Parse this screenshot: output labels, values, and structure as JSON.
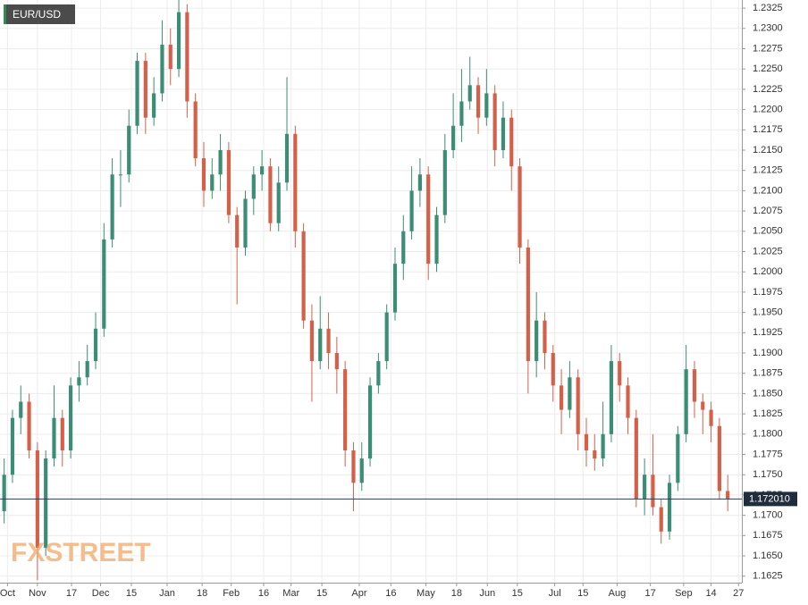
{
  "chart_data": {
    "type": "candlestick",
    "title": "EUR/USD",
    "watermark": "FXSTREET",
    "up_color": "#3b8d75",
    "down_color": "#d5604a",
    "grid": true,
    "xlim": [
      -0.5,
      88.7
    ],
    "xticks": [
      {
        "value": 0.4,
        "label": "Oct"
      },
      {
        "value": 4.0,
        "label": "Nov"
      },
      {
        "value": 8.1,
        "label": "17"
      },
      {
        "value": 11.6,
        "label": "Dec"
      },
      {
        "value": 15.3,
        "label": "15"
      },
      {
        "value": 19.6,
        "label": "Jan"
      },
      {
        "value": 23.8,
        "label": "18"
      },
      {
        "value": 27.3,
        "label": "Feb"
      },
      {
        "value": 31.2,
        "label": "16"
      },
      {
        "value": 34.5,
        "label": "Mar"
      },
      {
        "value": 38.2,
        "label": "15"
      },
      {
        "value": 42.7,
        "label": "Apr"
      },
      {
        "value": 46.5,
        "label": "16"
      },
      {
        "value": 50.7,
        "label": "May"
      },
      {
        "value": 54.4,
        "label": "18"
      },
      {
        "value": 58.1,
        "label": "Jun"
      },
      {
        "value": 61.7,
        "label": "15"
      },
      {
        "value": 66.2,
        "label": "Jul"
      },
      {
        "value": 69.6,
        "label": "15"
      },
      {
        "value": 73.7,
        "label": "Aug"
      },
      {
        "value": 77.7,
        "label": "17"
      },
      {
        "value": 81.7,
        "label": "Sep"
      },
      {
        "value": 85.0,
        "label": "14"
      },
      {
        "value": 88.3,
        "label": "27"
      }
    ],
    "ylim": [
      1.1617,
      1.2335
    ],
    "yticks": [
      1.1625,
      {
        "value": 1.165,
        "label": "1.1650"
      },
      1.1675,
      {
        "value": 1.17,
        "label": "1.1700"
      },
      1.1725,
      {
        "value": 1.175,
        "label": "1.1750"
      },
      1.1775,
      {
        "value": 1.18,
        "label": "1.1800"
      },
      1.1825,
      {
        "value": 1.185,
        "label": "1.1850"
      },
      1.1875,
      {
        "value": 1.19,
        "label": "1.1900"
      },
      1.1925,
      {
        "value": 1.195,
        "label": "1.1950"
      },
      1.1975,
      {
        "value": 1.2,
        "label": "1.2000"
      },
      1.2025,
      {
        "value": 1.205,
        "label": "1.2050"
      },
      1.2075,
      {
        "value": 1.21,
        "label": "1.2100"
      },
      1.2125,
      {
        "value": 1.215,
        "label": "1.2150"
      },
      1.2175,
      {
        "value": 1.22,
        "label": "1.2200"
      },
      1.2225,
      {
        "value": 1.225,
        "label": "1.2250"
      },
      1.2275,
      {
        "value": 1.23,
        "label": "1.2300"
      },
      1.2325
    ],
    "last_price": {
      "value": 1.17201,
      "label": "1.172010"
    },
    "ohlc": [
      [
        1.1705,
        1.177,
        1.169,
        1.175
      ],
      [
        1.175,
        1.183,
        1.174,
        1.182
      ],
      [
        1.182,
        1.186,
        1.18,
        1.184
      ],
      [
        1.184,
        1.185,
        1.177,
        1.178
      ],
      [
        1.178,
        1.179,
        1.162,
        1.166
      ],
      [
        1.166,
        1.178,
        1.165,
        1.177
      ],
      [
        1.177,
        1.186,
        1.176,
        1.182
      ],
      [
        1.182,
        1.183,
        1.176,
        1.178
      ],
      [
        1.178,
        1.187,
        1.177,
        1.186
      ],
      [
        1.186,
        1.189,
        1.184,
        1.187
      ],
      [
        1.187,
        1.191,
        1.186,
        1.189
      ],
      [
        1.189,
        1.195,
        1.188,
        1.193
      ],
      [
        1.193,
        1.206,
        1.192,
        1.204
      ],
      [
        1.204,
        1.214,
        1.203,
        1.212
      ],
      [
        1.212,
        1.215,
        1.208,
        1.212
      ],
      [
        1.212,
        1.22,
        1.211,
        1.218
      ],
      [
        1.218,
        1.227,
        1.217,
        1.226
      ],
      [
        1.226,
        1.227,
        1.217,
        1.219
      ],
      [
        1.219,
        1.224,
        1.218,
        1.222
      ],
      [
        1.222,
        1.231,
        1.221,
        1.228
      ],
      [
        1.228,
        1.23,
        1.223,
        1.225
      ],
      [
        1.225,
        1.2335,
        1.224,
        1.232
      ],
      [
        1.232,
        1.233,
        1.219,
        1.221
      ],
      [
        1.221,
        1.222,
        1.213,
        1.214
      ],
      [
        1.214,
        1.216,
        1.208,
        1.21
      ],
      [
        1.21,
        1.214,
        1.209,
        1.212
      ],
      [
        1.212,
        1.217,
        1.21,
        1.215
      ],
      [
        1.215,
        1.216,
        1.206,
        1.207
      ],
      [
        1.207,
        1.208,
        1.196,
        1.203
      ],
      [
        1.203,
        1.21,
        1.202,
        1.209
      ],
      [
        1.209,
        1.213,
        1.207,
        1.212
      ],
      [
        1.212,
        1.215,
        1.21,
        1.213
      ],
      [
        1.213,
        1.214,
        1.205,
        1.206
      ],
      [
        1.206,
        1.213,
        1.205,
        1.211
      ],
      [
        1.211,
        1.224,
        1.21,
        1.217
      ],
      [
        1.217,
        1.218,
        1.203,
        1.205
      ],
      [
        1.205,
        1.206,
        1.193,
        1.194
      ],
      [
        1.194,
        1.196,
        1.184,
        1.189
      ],
      [
        1.189,
        1.197,
        1.188,
        1.193
      ],
      [
        1.193,
        1.195,
        1.188,
        1.19
      ],
      [
        1.19,
        1.192,
        1.185,
        1.188
      ],
      [
        1.188,
        1.189,
        1.176,
        1.178
      ],
      [
        1.178,
        1.179,
        1.1705,
        1.174
      ],
      [
        1.174,
        1.179,
        1.173,
        1.177
      ],
      [
        1.177,
        1.187,
        1.176,
        1.186
      ],
      [
        1.186,
        1.19,
        1.185,
        1.189
      ],
      [
        1.189,
        1.196,
        1.188,
        1.195
      ],
      [
        1.195,
        1.203,
        1.194,
        1.201
      ],
      [
        1.201,
        1.207,
        1.199,
        1.205
      ],
      [
        1.205,
        1.213,
        1.204,
        1.21
      ],
      [
        1.21,
        1.214,
        1.208,
        1.212
      ],
      [
        1.212,
        1.213,
        1.199,
        1.201
      ],
      [
        1.201,
        1.208,
        1.2,
        1.207
      ],
      [
        1.207,
        1.217,
        1.206,
        1.215
      ],
      [
        1.215,
        1.222,
        1.214,
        1.218
      ],
      [
        1.218,
        1.225,
        1.216,
        1.221
      ],
      [
        1.221,
        1.2265,
        1.22,
        1.223
      ],
      [
        1.223,
        1.224,
        1.217,
        1.219
      ],
      [
        1.219,
        1.225,
        1.218,
        1.222
      ],
      [
        1.222,
        1.223,
        1.213,
        1.215
      ],
      [
        1.215,
        1.221,
        1.214,
        1.219
      ],
      [
        1.219,
        1.22,
        1.21,
        1.213
      ],
      [
        1.213,
        1.214,
        1.201,
        1.203
      ],
      [
        1.203,
        1.204,
        1.185,
        1.189
      ],
      [
        1.189,
        1.1975,
        1.187,
        1.194
      ],
      [
        1.194,
        1.195,
        1.188,
        1.19
      ],
      [
        1.19,
        1.191,
        1.184,
        1.186
      ],
      [
        1.186,
        1.188,
        1.18,
        1.183
      ],
      [
        1.183,
        1.189,
        1.182,
        1.187
      ],
      [
        1.187,
        1.188,
        1.178,
        1.18
      ],
      [
        1.18,
        1.182,
        1.176,
        1.178
      ],
      [
        1.178,
        1.18,
        1.1755,
        1.177
      ],
      [
        1.177,
        1.184,
        1.176,
        1.18
      ],
      [
        1.18,
        1.191,
        1.179,
        1.189
      ],
      [
        1.189,
        1.19,
        1.184,
        1.186
      ],
      [
        1.186,
        1.187,
        1.18,
        1.182
      ],
      [
        1.182,
        1.183,
        1.171,
        1.172
      ],
      [
        1.172,
        1.177,
        1.17,
        1.175
      ],
      [
        1.175,
        1.18,
        1.17,
        1.171
      ],
      [
        1.171,
        1.172,
        1.1665,
        1.168
      ],
      [
        1.168,
        1.175,
        1.167,
        1.174
      ],
      [
        1.174,
        1.181,
        1.173,
        1.18
      ],
      [
        1.18,
        1.191,
        1.179,
        1.188
      ],
      [
        1.188,
        1.189,
        1.182,
        1.184
      ],
      [
        1.184,
        1.185,
        1.18,
        1.183
      ],
      [
        1.183,
        1.184,
        1.179,
        1.181
      ],
      [
        1.181,
        1.182,
        1.172,
        1.173
      ],
      [
        1.173,
        1.175,
        1.1705,
        1.172
      ]
    ]
  }
}
